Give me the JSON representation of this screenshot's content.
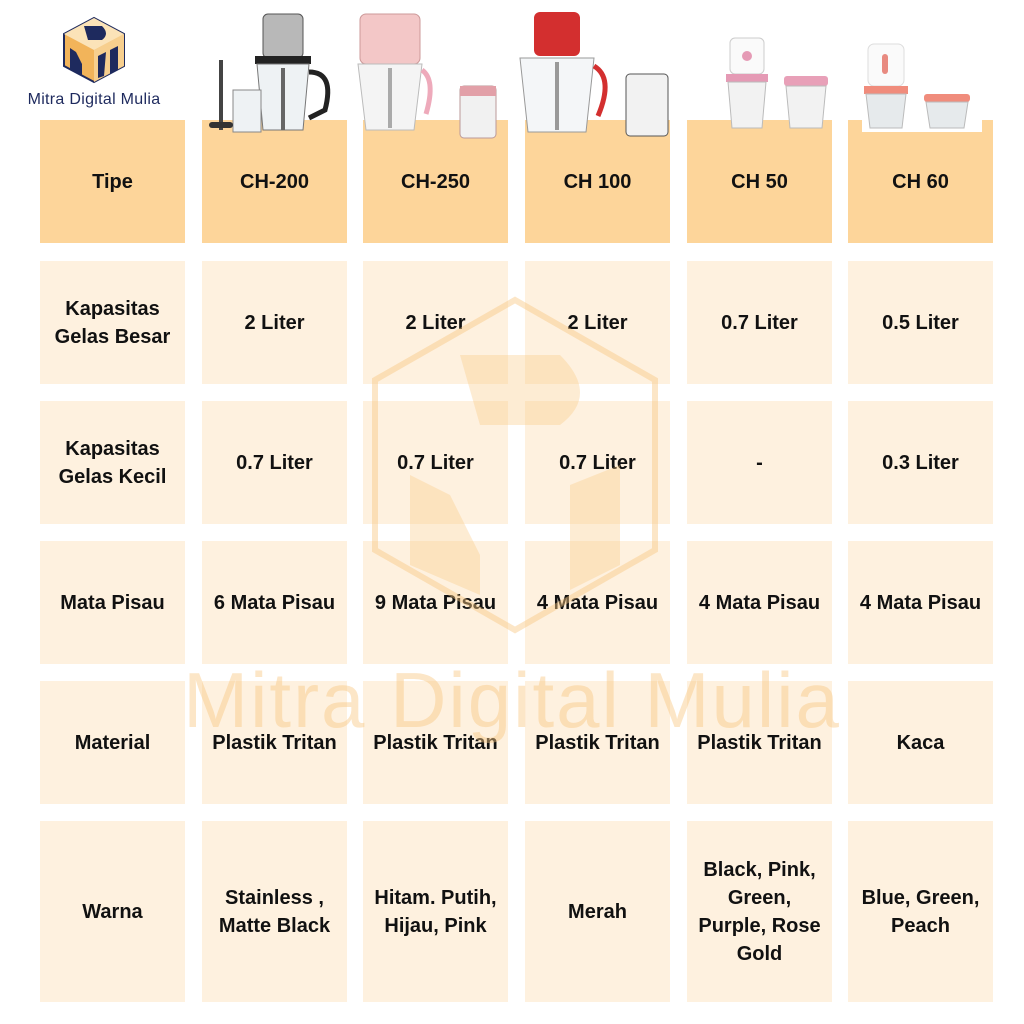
{
  "brand": {
    "name": "Mitra Digital Mulia",
    "logo_letters": "DMM",
    "watermark": "Mitra Digital Mulia"
  },
  "colors": {
    "header": "#FDD59A",
    "cell": "#FEF1DF",
    "logo_navy": "#1e2a5e",
    "logo_orange": "#F2B45A"
  },
  "table": {
    "header_label": "Tipe",
    "products": [
      "CH-200",
      "CH-250",
      "CH 100",
      "CH 50",
      "CH 60"
    ],
    "rows": [
      {
        "label": "Kapasitas Gelas Besar",
        "values": [
          "2 Liter",
          "2 Liter",
          "2 Liter",
          "0.7 Liter",
          "0.5 Liter"
        ]
      },
      {
        "label": "Kapasitas Gelas Kecil",
        "values": [
          "0.7 Liter",
          "0.7 Liter",
          "0.7 Liter",
          "-",
          "0.3 Liter"
        ]
      },
      {
        "label": "Mata Pisau",
        "values": [
          "6 Mata Pisau",
          "9 Mata Pisau",
          "4 Mata Pisau",
          "4 Mata Pisau",
          "4 Mata Pisau"
        ]
      },
      {
        "label": "Material",
        "values": [
          "Plastik Tritan",
          "Plastik Tritan",
          "Plastik Tritan",
          "Plastik Tritan",
          "Kaca"
        ]
      },
      {
        "label": "Warna",
        "values": [
          "Stainless , Matte Black",
          "Hitam. Putih, Hijau, Pink",
          "Merah",
          "Black, Pink, Green, Purple, Rose Gold",
          "Blue, Green, Peach"
        ]
      }
    ]
  }
}
